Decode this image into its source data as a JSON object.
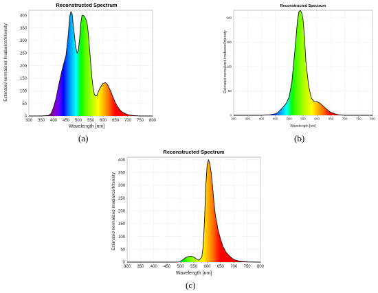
{
  "panels": [
    {
      "label": "(a)",
      "title": "Reconstructed Spectrum",
      "xlabel": "Wavelength [nm]",
      "ylabel": "Estimated normalized Irradiance/Intensity",
      "xticks": [
        "300",
        "350",
        "400",
        "450",
        "500",
        "550",
        "600",
        "650",
        "700",
        "750",
        "800"
      ],
      "yticks": [
        "0",
        "50",
        "100",
        "150",
        "200",
        "250",
        "300",
        "350",
        "400"
      ]
    },
    {
      "label": "(b)",
      "title": "Reconstructed Spectrum",
      "xlabel": "Wavelength [nm]",
      "ylabel": "Estimated normalized Irradiance/Intensity",
      "xticks": [
        "300",
        "350",
        "400",
        "450",
        "500",
        "550",
        "600",
        "650",
        "700",
        "750",
        "800"
      ],
      "yticks": [
        "0",
        "50",
        "100",
        "150",
        "200"
      ]
    },
    {
      "label": "(c)",
      "title": "Reconstructed Spectrum",
      "xlabel": "Wavelength [nm]",
      "ylabel": "Estimated normalized Irradiance/Intensity",
      "xticks": [
        "300",
        "350",
        "400",
        "450",
        "500",
        "550",
        "600",
        "650",
        "700",
        "750",
        "800"
      ],
      "yticks": [
        "0",
        "50",
        "100",
        "150",
        "200",
        "250",
        "300",
        "350",
        "400"
      ]
    }
  ],
  "chart_data": [
    {
      "type": "area",
      "title": "Reconstructed Spectrum",
      "xlabel": "Wavelength [nm]",
      "ylabel": "Estimated normalized Irradiance/Intensity",
      "xlim": [
        300,
        800
      ],
      "ylim": [
        0,
        420
      ],
      "grid": true,
      "fill": "visible-spectrum gradient",
      "x": [
        300,
        350,
        380,
        390,
        400,
        410,
        420,
        430,
        440,
        450,
        460,
        465,
        470,
        475,
        480,
        490,
        495,
        500,
        505,
        510,
        515,
        520,
        525,
        530,
        535,
        540,
        545,
        550,
        555,
        560,
        565,
        570,
        575,
        580,
        590,
        600,
        610,
        615,
        620,
        630,
        640,
        650,
        660,
        670,
        680,
        700,
        720,
        750,
        800
      ],
      "y": [
        0,
        0,
        2,
        10,
        35,
        70,
        120,
        165,
        205,
        240,
        330,
        395,
        415,
        405,
        355,
        270,
        250,
        260,
        305,
        370,
        400,
        400,
        395,
        385,
        370,
        330,
        270,
        210,
        150,
        110,
        85,
        80,
        80,
        95,
        115,
        130,
        132,
        128,
        120,
        100,
        75,
        52,
        35,
        22,
        14,
        5,
        2,
        0,
        0
      ]
    },
    {
      "type": "area",
      "title": "Reconstructed Spectrum",
      "xlabel": "Wavelength [nm]",
      "ylabel": "Estimated normalized Irradiance/Intensity",
      "xlim": [
        300,
        800
      ],
      "ylim": [
        0,
        215
      ],
      "grid": true,
      "fill": "visible-spectrum gradient",
      "x": [
        300,
        400,
        430,
        450,
        460,
        470,
        480,
        490,
        500,
        510,
        520,
        530,
        535,
        540,
        545,
        550,
        555,
        560,
        570,
        580,
        590,
        600,
        610,
        620,
        630,
        640,
        650,
        660,
        670,
        680,
        700,
        800
      ],
      "y": [
        0,
        0,
        1,
        3,
        6,
        12,
        18,
        25,
        38,
        70,
        130,
        195,
        212,
        215,
        210,
        195,
        160,
        110,
        60,
        35,
        28,
        28,
        25,
        20,
        15,
        10,
        6,
        4,
        2,
        1,
        0,
        0
      ]
    },
    {
      "type": "area",
      "title": "Reconstructed Spectrum",
      "xlabel": "Wavelength [nm]",
      "ylabel": "Estimated normalized Irradiance/Intensity",
      "xlim": [
        300,
        800
      ],
      "ylim": [
        0,
        410
      ],
      "grid": true,
      "fill": "visible-spectrum gradient",
      "x": [
        300,
        490,
        500,
        510,
        520,
        530,
        540,
        550,
        560,
        570,
        580,
        585,
        590,
        595,
        600,
        605,
        610,
        615,
        620,
        625,
        630,
        640,
        650,
        660,
        670,
        680,
        690,
        700,
        720,
        750,
        800
      ],
      "y": [
        0,
        0,
        3,
        10,
        18,
        22,
        23,
        20,
        12,
        7,
        20,
        60,
        160,
        300,
        380,
        400,
        385,
        350,
        300,
        240,
        190,
        130,
        90,
        60,
        40,
        28,
        18,
        10,
        4,
        1,
        0
      ]
    }
  ]
}
